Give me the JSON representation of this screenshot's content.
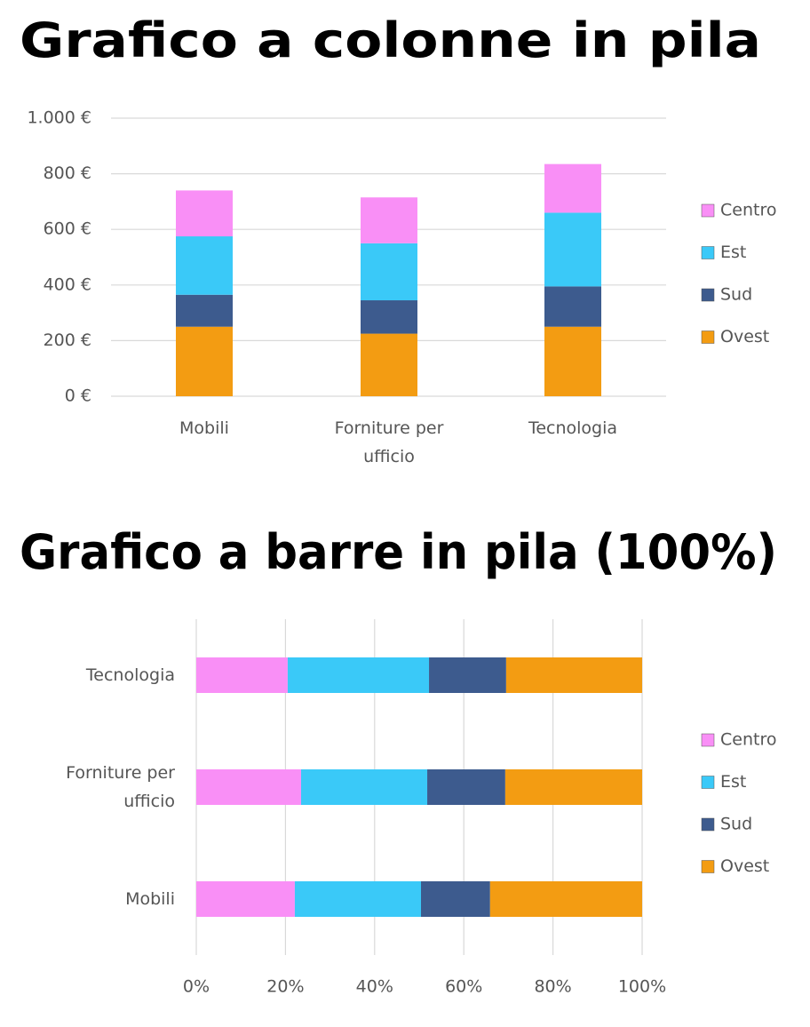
{
  "chart_data": [
    {
      "type": "bar",
      "orientation": "vertical",
      "stacked": true,
      "title": "Grafico a colonne in pila",
      "categories": [
        "Mobili",
        "Forniture per ufficio",
        "Tecnologia"
      ],
      "series": [
        {
          "name": "Centro",
          "color": "#f98ff6",
          "values": [
            165,
            165,
            175
          ]
        },
        {
          "name": "Est",
          "color": "#3ac9f8",
          "values": [
            210,
            205,
            265
          ]
        },
        {
          "name": "Sud",
          "color": "#3d5b8e",
          "values": [
            115,
            120,
            145
          ]
        },
        {
          "name": "Ovest",
          "color": "#f39c12",
          "values": [
            250,
            225,
            250
          ]
        }
      ],
      "ylim": [
        0,
        1000
      ],
      "yticks": [
        {
          "value": 0,
          "label": "0 €"
        },
        {
          "value": 200,
          "label": "200 €"
        },
        {
          "value": 400,
          "label": "400 €"
        },
        {
          "value": 600,
          "label": "600 €"
        },
        {
          "value": 800,
          "label": "800 €"
        },
        {
          "value": 1000,
          "label": "1.000 €"
        }
      ],
      "grid": true,
      "legend": "right"
    },
    {
      "type": "bar",
      "orientation": "horizontal",
      "stacked": true,
      "title": "Grafico a barre in pila (100%)",
      "categories": [
        "Mobili",
        "Forniture per ufficio",
        "Tecnologia"
      ],
      "series": [
        {
          "name": "Centro",
          "color": "#f98ff6",
          "values": [
            22.1,
            23.5,
            20.5
          ]
        },
        {
          "name": "Est",
          "color": "#3ac9f8",
          "values": [
            28.3,
            28.3,
            31.7
          ]
        },
        {
          "name": "Sud",
          "color": "#3d5b8e",
          "values": [
            15.5,
            17.5,
            17.3
          ]
        },
        {
          "name": "Ovest",
          "color": "#f39c12",
          "values": [
            34.1,
            30.7,
            30.5
          ]
        }
      ],
      "xlim": [
        0,
        100
      ],
      "xticks": [
        {
          "value": 0,
          "label": "0%"
        },
        {
          "value": 20,
          "label": "20%"
        },
        {
          "value": 40,
          "label": "40%"
        },
        {
          "value": 60,
          "label": "60%"
        },
        {
          "value": 80,
          "label": "80%"
        },
        {
          "value": 100,
          "label": "100%"
        }
      ],
      "grid": true,
      "legend": "right"
    }
  ]
}
